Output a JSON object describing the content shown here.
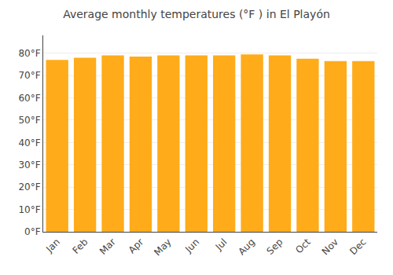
{
  "chart_data": {
    "type": "bar",
    "title": "Average monthly temperatures (°F ) in El Playón",
    "categories": [
      "Jan",
      "Feb",
      "Mar",
      "Apr",
      "May",
      "Jun",
      "Jul",
      "Aug",
      "Sep",
      "Oct",
      "Nov",
      "Dec"
    ],
    "values": [
      77,
      78,
      79,
      78.5,
      79,
      79,
      79,
      79.5,
      79,
      77.5,
      76.5,
      76.5
    ],
    "color": "#FFAB1A",
    "ylim": [
      0,
      88
    ],
    "yticks": [
      {
        "value": 0,
        "label": "0°F"
      },
      {
        "value": 10,
        "label": "10°F"
      },
      {
        "value": 20,
        "label": "20°F"
      },
      {
        "value": 30,
        "label": "30°F"
      },
      {
        "value": 40,
        "label": "40°F"
      },
      {
        "value": 50,
        "label": "50°F"
      },
      {
        "value": 60,
        "label": "60°F"
      },
      {
        "value": 70,
        "label": "70°F"
      },
      {
        "value": 80,
        "label": "80°F"
      }
    ],
    "grid": true
  }
}
